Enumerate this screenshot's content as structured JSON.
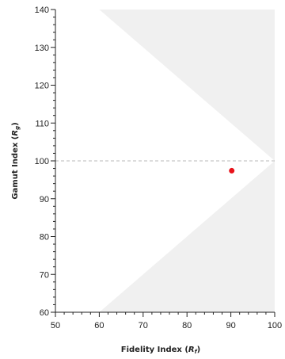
{
  "chart_data": {
    "type": "scatter",
    "title": "",
    "xlabel": {
      "main": "Fidelity  Index (",
      "symbol": "R",
      "sub": "f",
      "close": ")"
    },
    "ylabel": {
      "main": "Gamut  Index (",
      "symbol": "R",
      "sub": "g",
      "close": ")"
    },
    "xlim": [
      50,
      100
    ],
    "ylim": [
      60,
      140
    ],
    "x_major_ticks": [
      50,
      60,
      70,
      80,
      90,
      100
    ],
    "y_major_ticks": [
      60,
      70,
      80,
      90,
      100,
      110,
      120,
      130,
      140
    ],
    "minor_tick_step": 2,
    "reference_line_y": 100,
    "shaded_regions": [
      {
        "name": "upper-shaded-region",
        "points": [
          [
            60,
            140
          ],
          [
            100,
            140
          ],
          [
            100,
            100
          ]
        ]
      },
      {
        "name": "lower-shaded-region",
        "points": [
          [
            60,
            60
          ],
          [
            100,
            60
          ],
          [
            100,
            100
          ]
        ]
      }
    ],
    "points": [
      {
        "x": 90.2,
        "y": 97.4
      }
    ],
    "grid": false,
    "legend": "none"
  },
  "colors": {
    "shade": "#f0f0f0",
    "reference_line": "#b8b8b8",
    "point": "#e8121a",
    "axis": "#222222"
  }
}
